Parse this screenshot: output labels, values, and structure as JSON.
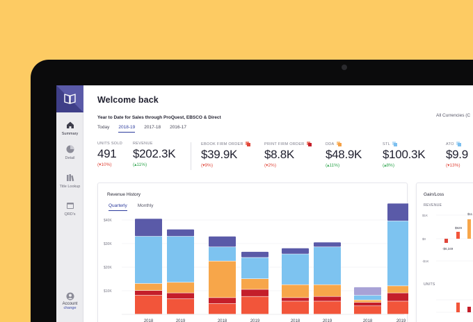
{
  "sidebar": {
    "items": [
      {
        "label": "Summary",
        "icon": "home-icon"
      },
      {
        "label": "Detail",
        "icon": "pie-chart-icon"
      },
      {
        "label": "Title Lookup",
        "icon": "books-icon"
      },
      {
        "label": "QRD's",
        "icon": "calendar-icon"
      }
    ],
    "account_label": "Account",
    "account_action": "change"
  },
  "header": {
    "title": "Welcome back",
    "subtitle": "Year to Date for Sales through ProQuest, EBSCO & Direct",
    "currency": "All Currencies (C"
  },
  "period_tabs": [
    "Today",
    "2018-19",
    "2017-18",
    "2016-17"
  ],
  "active_period": "2018-19",
  "kpis": [
    {
      "label": "UNITS SOLD",
      "value": "491",
      "delta": "(▾10%)",
      "direction": "down"
    },
    {
      "label": "REVENUE",
      "value": "$202.3K",
      "delta": "(▴11%)",
      "direction": "up"
    },
    {
      "label": "EBOOK FIRM ORDER",
      "value": "$39.9K",
      "delta": "(▾9%)",
      "direction": "down",
      "badge_color": "#e0463a"
    },
    {
      "label": "PRINT FIRM ORDER",
      "value": "$8.8K",
      "delta": "(▾2%)",
      "direction": "down",
      "badge_color": "#e0463a"
    },
    {
      "label": "DDA",
      "value": "$48.9K",
      "delta": "(▴11%)",
      "direction": "up",
      "badge_color": "#f5a046"
    },
    {
      "label": "STL",
      "value": "$100.3K",
      "delta": "(▴8%)",
      "direction": "up",
      "badge_color": "#7cbfef"
    },
    {
      "label": "ATO",
      "value": "$9.9",
      "delta": "(▾13%)",
      "direction": "down",
      "badge_color": "#7cbfef"
    }
  ],
  "revenue_history": {
    "title": "Revenue History",
    "tabs": [
      "Quarterly",
      "Monthly"
    ],
    "active_tab": "Quarterly"
  },
  "gain_loss": {
    "title": "Gain/Loss",
    "revenue_label": "REVENUE",
    "units_label": "UNITS",
    "revenue_values": [
      "$929",
      "-$6,349"
    ],
    "revenue_edge_value": "$11"
  },
  "chart_data": {
    "type": "bar",
    "stacked": true,
    "ylim": [
      0,
      45000
    ],
    "yticks": [
      "$10K",
      "$20K",
      "$30K",
      "$40K"
    ],
    "categories": [
      "2018",
      "2019",
      "2018",
      "2019",
      "2018",
      "2019",
      "2018",
      "2019"
    ],
    "series": [
      {
        "color": "#f2553a",
        "values": [
          8000,
          6500,
          4500,
          7500,
          5500,
          5500,
          3500,
          5500
        ]
      },
      {
        "color": "#c41e2a",
        "values": [
          2000,
          2500,
          2500,
          3000,
          1500,
          2000,
          1500,
          3500
        ]
      },
      {
        "color": "#f7a64a",
        "values": [
          3000,
          4500,
          15500,
          4500,
          5500,
          5000,
          1000,
          3000
        ]
      },
      {
        "color": "#7dc3f0",
        "values": [
          20000,
          19500,
          6000,
          9000,
          13000,
          16000,
          2000,
          27500
        ]
      },
      {
        "color": "#5a5aa8",
        "values": [
          7500,
          3000,
          4500,
          2500,
          2500,
          2000,
          3500,
          7500
        ]
      }
    ],
    "bar_colors": {
      "last_group_top": "#a8a2d6"
    },
    "colors": {
      "red": "#f2553a",
      "dark_red": "#c41e2a",
      "orange": "#f7a64a",
      "blue": "#7dc3f0",
      "purple": "#5a5aa8"
    }
  },
  "colors": {
    "brand": "#3f3f88",
    "accent": "#2b3a9c",
    "background": "#FDCB63",
    "negative": "#e0463a",
    "positive": "#2aa34a"
  }
}
